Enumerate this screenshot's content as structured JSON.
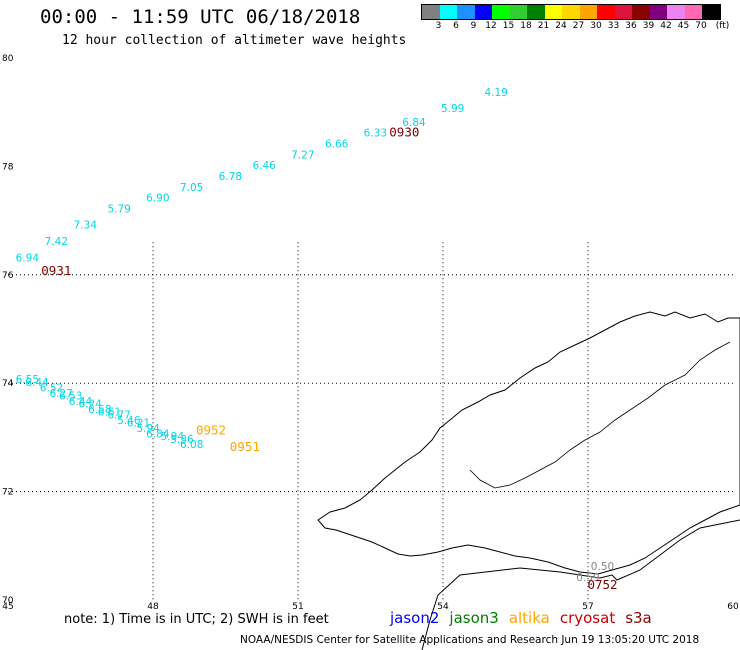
{
  "title": "00:00 - 11:59 UTC 06/18/2018",
  "subtitle": "12 hour collection of altimeter wave heights",
  "legend": {
    "unit": "(ft)",
    "colors": [
      "#808080",
      "#00ffff",
      "#1e90ff",
      "#0000ff",
      "#00ff00",
      "#32cd32",
      "#008000",
      "#ffff00",
      "#ffd700",
      "#ffa500",
      "#ff0000",
      "#dc143c",
      "#8b0000",
      "#800080",
      "#ee82ee",
      "#ff69b4",
      "#000000"
    ],
    "labels": [
      "3",
      "6",
      "9",
      "12",
      "15",
      "18",
      "21",
      "24",
      "27",
      "30",
      "33",
      "36",
      "39",
      "42",
      "45",
      "70"
    ]
  },
  "map": {
    "lon_min": 45,
    "lon_max": 60,
    "lat_min": 70,
    "lat_max": 80,
    "x_ticks": [
      "45",
      "48",
      "51",
      "54",
      "57",
      "60"
    ],
    "y_ticks": [
      "70",
      "72",
      "74",
      "76",
      "78",
      "80"
    ],
    "dotted_meridians": [
      48,
      51,
      54,
      57
    ],
    "dotted_parallels": [
      72,
      74,
      76
    ]
  },
  "tracks": {
    "northern_jason3a": [
      {
        "lon": 45.4,
        "lat": 76.25,
        "v": "6.94"
      },
      {
        "lon": 46.0,
        "lat": 76.55,
        "v": "7.42"
      },
      {
        "lon": 46.6,
        "lat": 76.85,
        "v": "7.34"
      },
      {
        "lon": 47.3,
        "lat": 77.15,
        "v": "5.79"
      },
      {
        "lon": 48.1,
        "lat": 77.35,
        "v": "6.90"
      },
      {
        "lon": 48.8,
        "lat": 77.55,
        "v": "7.05"
      },
      {
        "lon": 49.6,
        "lat": 77.75,
        "v": "6.78"
      },
      {
        "lon": 50.3,
        "lat": 77.95,
        "v": "6.46"
      },
      {
        "lon": 51.1,
        "lat": 78.15,
        "v": "7.27"
      },
      {
        "lon": 51.8,
        "lat": 78.35,
        "v": "6.66"
      },
      {
        "lon": 52.6,
        "lat": 78.55,
        "v": "6.33"
      },
      {
        "lon": 53.4,
        "lat": 78.75,
        "v": "6.84"
      },
      {
        "lon": 54.2,
        "lat": 79.0,
        "v": "5.99"
      },
      {
        "lon": 55.1,
        "lat": 79.3,
        "v": "4.19"
      }
    ],
    "southern_jason3b": [
      {
        "lon": 45.4,
        "lat": 74.0,
        "v": "6.55"
      },
      {
        "lon": 45.6,
        "lat": 73.95,
        "v": "6.44"
      },
      {
        "lon": 45.9,
        "lat": 73.85,
        "v": "6.52"
      },
      {
        "lon": 46.1,
        "lat": 73.75,
        "v": "6.27"
      },
      {
        "lon": 46.3,
        "lat": 73.7,
        "v": "6.53"
      },
      {
        "lon": 46.5,
        "lat": 73.6,
        "v": "6.44"
      },
      {
        "lon": 46.7,
        "lat": 73.55,
        "v": "6.24"
      },
      {
        "lon": 46.9,
        "lat": 73.45,
        "v": "6.58"
      },
      {
        "lon": 47.1,
        "lat": 73.4,
        "v": "6.61"
      },
      {
        "lon": 47.3,
        "lat": 73.35,
        "v": "6.77"
      },
      {
        "lon": 47.5,
        "lat": 73.25,
        "v": "5.46"
      },
      {
        "lon": 47.7,
        "lat": 73.2,
        "v": "6.21"
      },
      {
        "lon": 47.9,
        "lat": 73.1,
        "v": "5.94"
      },
      {
        "lon": 48.1,
        "lat": 73.0,
        "v": "6.84"
      },
      {
        "lon": 48.4,
        "lat": 72.95,
        "v": "5.94"
      },
      {
        "lon": 48.6,
        "lat": 72.9,
        "v": "5.36"
      },
      {
        "lon": 48.8,
        "lat": 72.8,
        "v": "6.08"
      }
    ],
    "altika_points": [
      {
        "lon": 49.2,
        "lat": 73.05,
        "v": "0952"
      },
      {
        "lon": 49.9,
        "lat": 72.75,
        "v": "0951"
      }
    ],
    "s3a_points": [
      {
        "lon": 57.3,
        "lat": 70.55,
        "v": "0.50"
      },
      {
        "lon": 57.0,
        "lat": 70.35,
        "v": "0.59"
      }
    ],
    "orbit_labels": [
      {
        "lon": 46.0,
        "lat": 76.0,
        "v": "0931"
      },
      {
        "lon": 53.2,
        "lat": 78.55,
        "v": "0930"
      },
      {
        "lon": 57.3,
        "lat": 70.2,
        "v": "0752"
      }
    ]
  },
  "note": "note: 1) Time is in UTC; 2) SWH is in feet",
  "satellites": [
    {
      "name": "jason2",
      "color": "#0000ff"
    },
    {
      "name": "jason3",
      "color": "#008000"
    },
    {
      "name": "altika",
      "color": "#ffa500"
    },
    {
      "name": "cryosat",
      "color": "#cc0000"
    },
    {
      "name": "s3a",
      "color": "#8b0000"
    }
  ],
  "credit": "NOAA/NESDIS Center for Satellite Applications and Research   Jun 19 13:05:20 UTC 2018",
  "colors": {
    "jason3_track": "#00d8e8",
    "altika_track": "#ffa500",
    "s3a_track": "#888888",
    "orbit_label": "#800000",
    "coast": "#000000"
  }
}
